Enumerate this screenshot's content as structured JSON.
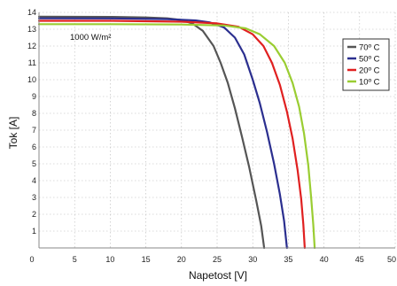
{
  "chart_data": {
    "type": "line",
    "xlabel": "Napetost [V]",
    "ylabel": "Tok [A]",
    "xlim": [
      0,
      50
    ],
    "ylim": [
      0,
      14
    ],
    "x_ticks": [
      "0",
      "5",
      "10",
      "15",
      "20",
      "25",
      "30",
      "35",
      "40",
      "45",
      "50"
    ],
    "y_ticks": [
      "1",
      "2",
      "3",
      "4",
      "5",
      "6",
      "7",
      "8",
      "9",
      "10",
      "11",
      "12",
      "13",
      "14"
    ],
    "grid": true,
    "annotation": "1000 W/m²",
    "legend_position": "right",
    "series": [
      {
        "name": "70º C",
        "color": "#555555",
        "points": [
          [
            0,
            13.75
          ],
          [
            10,
            13.73
          ],
          [
            15,
            13.7
          ],
          [
            18,
            13.65
          ],
          [
            20,
            13.55
          ],
          [
            21.5,
            13.35
          ],
          [
            23,
            12.9
          ],
          [
            24.5,
            12.0
          ],
          [
            25.5,
            11.0
          ],
          [
            26.5,
            9.8
          ],
          [
            27.5,
            8.3
          ],
          [
            28.5,
            6.6
          ],
          [
            29.5,
            4.8
          ],
          [
            30.5,
            2.8
          ],
          [
            31.2,
            1.3
          ],
          [
            31.6,
            0
          ]
        ]
      },
      {
        "name": "50º C",
        "color": "#2b2f8f",
        "points": [
          [
            0,
            13.65
          ],
          [
            10,
            13.64
          ],
          [
            18,
            13.6
          ],
          [
            22,
            13.52
          ],
          [
            24,
            13.4
          ],
          [
            26,
            13.1
          ],
          [
            27.5,
            12.5
          ],
          [
            28.8,
            11.5
          ],
          [
            30,
            10.0
          ],
          [
            31,
            8.6
          ],
          [
            32,
            6.9
          ],
          [
            33,
            5.0
          ],
          [
            33.8,
            3.2
          ],
          [
            34.4,
            1.6
          ],
          [
            34.8,
            0
          ]
        ]
      },
      {
        "name": "20º C",
        "color": "#e02020",
        "points": [
          [
            0,
            13.5
          ],
          [
            10,
            13.5
          ],
          [
            20,
            13.45
          ],
          [
            25,
            13.35
          ],
          [
            28,
            13.15
          ],
          [
            30,
            12.7
          ],
          [
            31.5,
            12.0
          ],
          [
            32.7,
            11.0
          ],
          [
            33.8,
            9.7
          ],
          [
            34.8,
            8.1
          ],
          [
            35.6,
            6.5
          ],
          [
            36.3,
            4.6
          ],
          [
            36.8,
            2.9
          ],
          [
            37.1,
            1.4
          ],
          [
            37.3,
            0
          ]
        ]
      },
      {
        "name": "10º C",
        "color": "#9acd32",
        "points": [
          [
            0,
            13.3
          ],
          [
            10,
            13.3
          ],
          [
            20,
            13.28
          ],
          [
            26,
            13.22
          ],
          [
            29,
            13.05
          ],
          [
            31,
            12.7
          ],
          [
            33,
            12.0
          ],
          [
            34.5,
            11.0
          ],
          [
            35.6,
            9.8
          ],
          [
            36.5,
            8.4
          ],
          [
            37.2,
            6.8
          ],
          [
            37.8,
            4.9
          ],
          [
            38.2,
            3.0
          ],
          [
            38.5,
            1.4
          ],
          [
            38.7,
            0
          ]
        ]
      }
    ]
  }
}
